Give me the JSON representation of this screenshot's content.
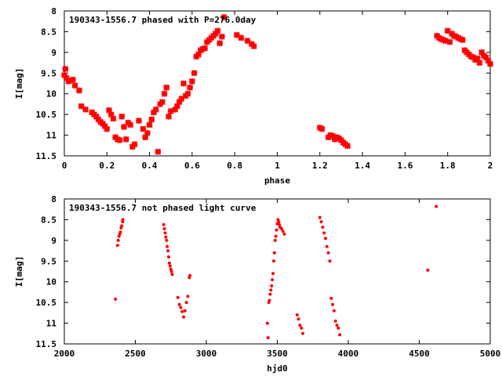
{
  "chart_data": [
    {
      "type": "scatter",
      "title": "190343-1556.7 phased with P=276.0day",
      "xlabel": "phase",
      "ylabel": "I[mag]",
      "xlim": [
        0,
        2
      ],
      "ylim": [
        11.5,
        8
      ],
      "y_inverted": true,
      "x_ticks": [
        "0",
        "0.2",
        "0.4",
        "0.6",
        "0.8",
        "1",
        "1.2",
        "1.4",
        "1.6",
        "1.8",
        "2"
      ],
      "y_ticks": [
        "8",
        "8.5",
        "9",
        "9.5",
        "10",
        "10.5",
        "11",
        "11.5"
      ],
      "grid": false,
      "marker_color": "#ff0000",
      "series": [
        {
          "x": [
            0.0,
            0.005,
            0.01,
            0.02,
            0.03,
            0.04,
            0.05,
            0.07,
            0.08,
            0.1,
            0.13,
            0.14,
            0.15,
            0.16,
            0.17,
            0.18,
            0.19,
            0.2,
            0.21,
            0.22,
            0.23,
            0.24,
            0.25,
            0.26,
            0.27,
            0.28,
            0.29,
            0.3,
            0.31,
            0.32,
            0.33,
            0.35,
            0.37,
            0.38,
            0.39,
            0.4,
            0.41,
            0.42,
            0.43,
            0.44,
            0.45,
            0.46,
            0.47,
            0.48,
            0.49,
            0.5,
            0.52,
            0.53,
            0.54,
            0.55,
            0.56,
            0.57,
            0.58,
            0.59,
            0.6,
            0.61,
            0.62,
            0.63,
            0.64,
            0.65,
            0.66,
            0.67,
            0.68,
            0.69,
            0.7,
            0.71,
            0.72,
            0.73,
            0.74,
            0.75,
            0.81,
            0.83,
            0.86,
            0.88,
            0.89,
            1.2,
            1.21,
            1.24,
            1.25,
            1.26,
            1.27,
            1.28,
            1.29,
            1.3,
            1.31,
            1.32,
            1.33,
            1.75,
            1.76,
            1.77,
            1.78,
            1.79,
            1.8,
            1.81,
            1.82,
            1.83,
            1.84,
            1.85,
            1.86,
            1.87,
            1.88,
            1.89,
            1.9,
            1.91,
            1.92,
            1.93,
            1.94,
            1.95,
            1.96,
            1.97,
            1.98,
            1.99,
            2.0
          ],
          "y": [
            9.55,
            9.4,
            9.62,
            9.7,
            9.68,
            9.66,
            9.8,
            9.92,
            10.3,
            10.38,
            10.45,
            10.5,
            10.55,
            10.62,
            10.68,
            10.72,
            10.78,
            10.85,
            10.4,
            10.5,
            10.6,
            11.05,
            11.1,
            11.12,
            10.55,
            10.8,
            11.1,
            10.7,
            10.75,
            11.28,
            11.22,
            10.65,
            10.85,
            11.05,
            10.95,
            10.75,
            10.62,
            10.45,
            10.38,
            11.4,
            10.25,
            10.2,
            10.0,
            9.85,
            10.55,
            10.42,
            10.38,
            10.3,
            10.2,
            10.12,
            9.75,
            10.05,
            10.0,
            9.85,
            9.7,
            9.5,
            9.1,
            9.05,
            8.95,
            8.92,
            8.9,
            8.75,
            8.7,
            8.65,
            8.6,
            8.55,
            8.48,
            8.78,
            8.62,
            8.15,
            8.58,
            8.65,
            8.72,
            8.8,
            8.85,
            10.82,
            10.85,
            11.05,
            11.0,
            11.02,
            11.1,
            11.05,
            11.08,
            11.12,
            11.18,
            11.22,
            11.26,
            8.6,
            8.65,
            8.68,
            8.7,
            8.72,
            8.48,
            8.75,
            8.55,
            8.6,
            8.62,
            8.65,
            8.68,
            8.7,
            8.95,
            9.0,
            9.05,
            9.1,
            9.12,
            9.18,
            9.15,
            9.25,
            9.0,
            9.08,
            9.12,
            9.2,
            9.28
          ]
        }
      ]
    },
    {
      "type": "scatter",
      "title": "190343-1556.7 not phased light curve",
      "xlabel": "hjd0",
      "ylabel": "I[mag]",
      "xlim": [
        2000,
        5000
      ],
      "ylim": [
        11.5,
        8
      ],
      "y_inverted": true,
      "x_ticks": [
        "2000",
        "2500",
        "3000",
        "3500",
        "4000",
        "4500",
        "5000"
      ],
      "y_ticks": [
        "8",
        "8.5",
        "9",
        "9.5",
        "10",
        "10.5",
        "11",
        "11.5"
      ],
      "grid": false,
      "marker_color": "#ff0000",
      "series": [
        {
          "x": [
            2360,
            2375,
            2380,
            2385,
            2390,
            2395,
            2400,
            2405,
            2410,
            2412,
            2700,
            2705,
            2710,
            2715,
            2720,
            2725,
            2730,
            2735,
            2740,
            2745,
            2750,
            2755,
            2760,
            2800,
            2810,
            2820,
            2830,
            2840,
            2850,
            2860,
            2870,
            2880,
            2885,
            3430,
            3435,
            3440,
            3445,
            3450,
            3455,
            3460,
            3465,
            3470,
            3475,
            3480,
            3485,
            3490,
            3495,
            3500,
            3505,
            3510,
            3515,
            3520,
            3530,
            3540,
            3550,
            3640,
            3650,
            3660,
            3670,
            3680,
            3800,
            3810,
            3820,
            3830,
            3840,
            3850,
            3860,
            3870,
            3880,
            3890,
            3900,
            3910,
            3920,
            3930,
            3940,
            4560,
            4620
          ],
          "y": [
            10.42,
            9.12,
            9.0,
            8.9,
            8.85,
            8.8,
            8.7,
            8.65,
            8.55,
            8.5,
            8.62,
            8.72,
            8.82,
            8.92,
            9.0,
            9.15,
            9.25,
            9.4,
            9.55,
            9.62,
            9.7,
            9.75,
            9.82,
            10.38,
            10.55,
            10.62,
            10.72,
            10.85,
            10.7,
            10.5,
            10.35,
            9.9,
            9.85,
            11.0,
            11.35,
            10.5,
            10.45,
            10.3,
            10.2,
            10.1,
            9.95,
            9.8,
            9.5,
            9.3,
            9.0,
            8.9,
            8.75,
            8.6,
            8.5,
            8.55,
            8.62,
            8.68,
            8.72,
            8.78,
            8.85,
            10.8,
            10.9,
            11.05,
            11.12,
            11.25,
            8.45,
            8.55,
            8.68,
            8.82,
            8.95,
            9.15,
            9.3,
            9.5,
            10.4,
            10.55,
            10.7,
            10.95,
            11.05,
            11.12,
            11.28,
            9.72,
            8.18
          ]
        }
      ]
    }
  ]
}
